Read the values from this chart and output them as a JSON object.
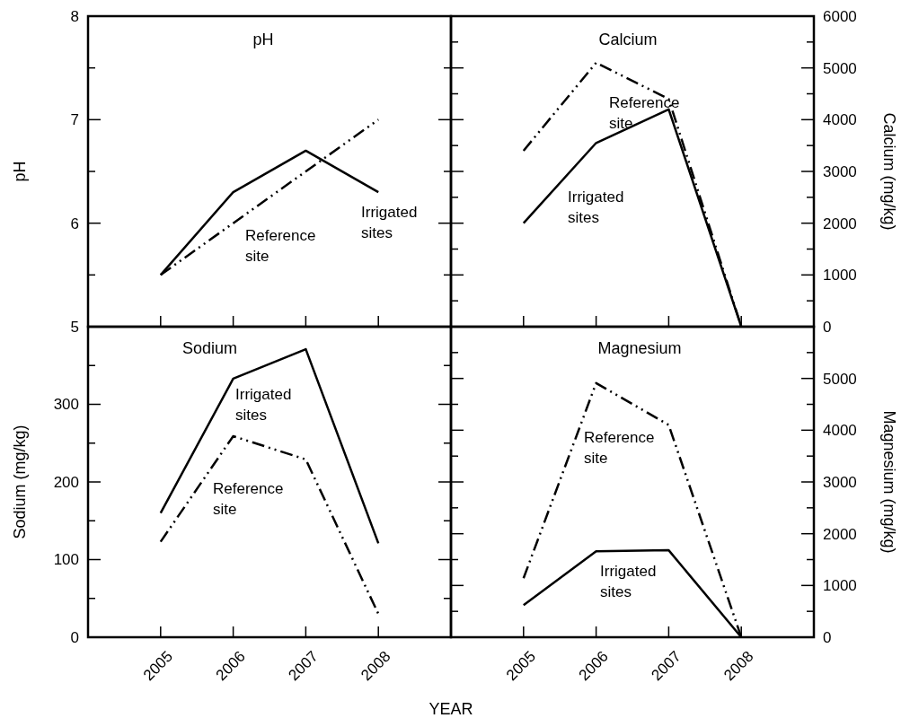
{
  "chart_data": [
    {
      "type": "line",
      "title": "pH",
      "ylabel": "pH",
      "xlim": [
        2004,
        2009
      ],
      "xticks": [
        2005,
        2006,
        2007,
        2008
      ],
      "ylim": [
        5,
        8
      ],
      "yticks": [
        5,
        {
          "value": 5.5,
          "label": null
        },
        6,
        {
          "value": 6.5,
          "label": null
        },
        7,
        {
          "value": 7.5,
          "label": null
        },
        8
      ],
      "tick_labels": "y",
      "x": [
        2005,
        2006,
        2007,
        2008
      ],
      "series": [
        {
          "name": "Irrigated sites",
          "color": "#000000",
          "line_style": "solid",
          "values": [
            5.5,
            6.3,
            6.7,
            6.3
          ]
        },
        {
          "name": "Reference site",
          "color": "#000000",
          "line_style": "dashed",
          "values": [
            5.5,
            6.0,
            6.5,
            7.0
          ]
        }
      ]
    },
    {
      "type": "line",
      "title": "Calcium",
      "y2label": "Calcium (mg/kg)",
      "xlim": [
        2004,
        2009
      ],
      "xticks": [
        2005,
        2006,
        2007,
        2008
      ],
      "y2lim": [
        0,
        6000
      ],
      "y2ticks": [
        0,
        {
          "value": 500,
          "label": null
        },
        1000,
        {
          "value": 1500,
          "label": null
        },
        2000,
        {
          "value": 2500,
          "label": null
        },
        3000,
        {
          "value": 3500,
          "label": null
        },
        4000,
        {
          "value": 4500,
          "label": null
        },
        5000,
        {
          "value": 5500,
          "label": null
        },
        6000
      ],
      "tick_labels": "y",
      "x": [
        2005,
        2006,
        2007,
        2008
      ],
      "series": [
        {
          "name": "Irrigated sites",
          "color": "#000000",
          "line_style": "solid",
          "axis": "y2",
          "values": [
            2000,
            3550,
            4200,
            0
          ]
        },
        {
          "name": "Reference site",
          "color": "#000000",
          "line_style": "dashed",
          "axis": "y2",
          "values": [
            3400,
            5100,
            4400,
            0
          ]
        }
      ]
    },
    {
      "type": "line",
      "title": "Sodium",
      "ylabel": "Sodium  (mg/kg)",
      "xlabel": "YEAR",
      "xlim": [
        2004,
        2009
      ],
      "xticks": [
        2005,
        2006,
        2007,
        2008
      ],
      "ylim": [
        0,
        400
      ],
      "yticks": [
        0,
        {
          "value": 50,
          "label": null
        },
        100,
        {
          "value": 150,
          "label": null
        },
        200,
        {
          "value": 250,
          "label": null
        },
        300,
        {
          "value": 350,
          "label": null
        },
        {
          "value": 400,
          "label": null
        }
      ],
      "x": [
        2005,
        2006,
        2007,
        2008
      ],
      "series": [
        {
          "name": "Irrigated sites",
          "color": "#000000",
          "line_style": "solid",
          "values": [
            160,
            333,
            371,
            121
          ]
        },
        {
          "name": "Reference site",
          "color": "#000000",
          "line_style": "dashed",
          "values": [
            123,
            259,
            229,
            30
          ]
        }
      ]
    },
    {
      "type": "line",
      "title": "Magnesium",
      "y2label": "Magnesium  (mg/kg)",
      "xlim": [
        2004,
        2009
      ],
      "xticks": [
        2005,
        2006,
        2007,
        2008
      ],
      "y2lim": [
        0,
        6000
      ],
      "y2ticks": [
        0,
        {
          "value": 500,
          "label": null
        },
        1000,
        {
          "value": 1500,
          "label": null
        },
        2000,
        {
          "value": 2500,
          "label": null
        },
        3000,
        {
          "value": 3500,
          "label": null
        },
        4000,
        {
          "value": 4500,
          "label": null
        },
        5000,
        {
          "value": 5500,
          "label": null
        },
        {
          "value": 6000,
          "label": null
        }
      ],
      "x": [
        2005,
        2006,
        2007,
        2008
      ],
      "series": [
        {
          "name": "Irrigated sites",
          "color": "#000000",
          "line_style": "solid",
          "axis": "y2",
          "values": [
            620,
            1660,
            1680,
            0
          ]
        },
        {
          "name": "Reference site",
          "color": "#000000",
          "line_style": "dashed",
          "axis": "y2",
          "values": [
            1140,
            4910,
            4100,
            0
          ]
        }
      ]
    }
  ]
}
